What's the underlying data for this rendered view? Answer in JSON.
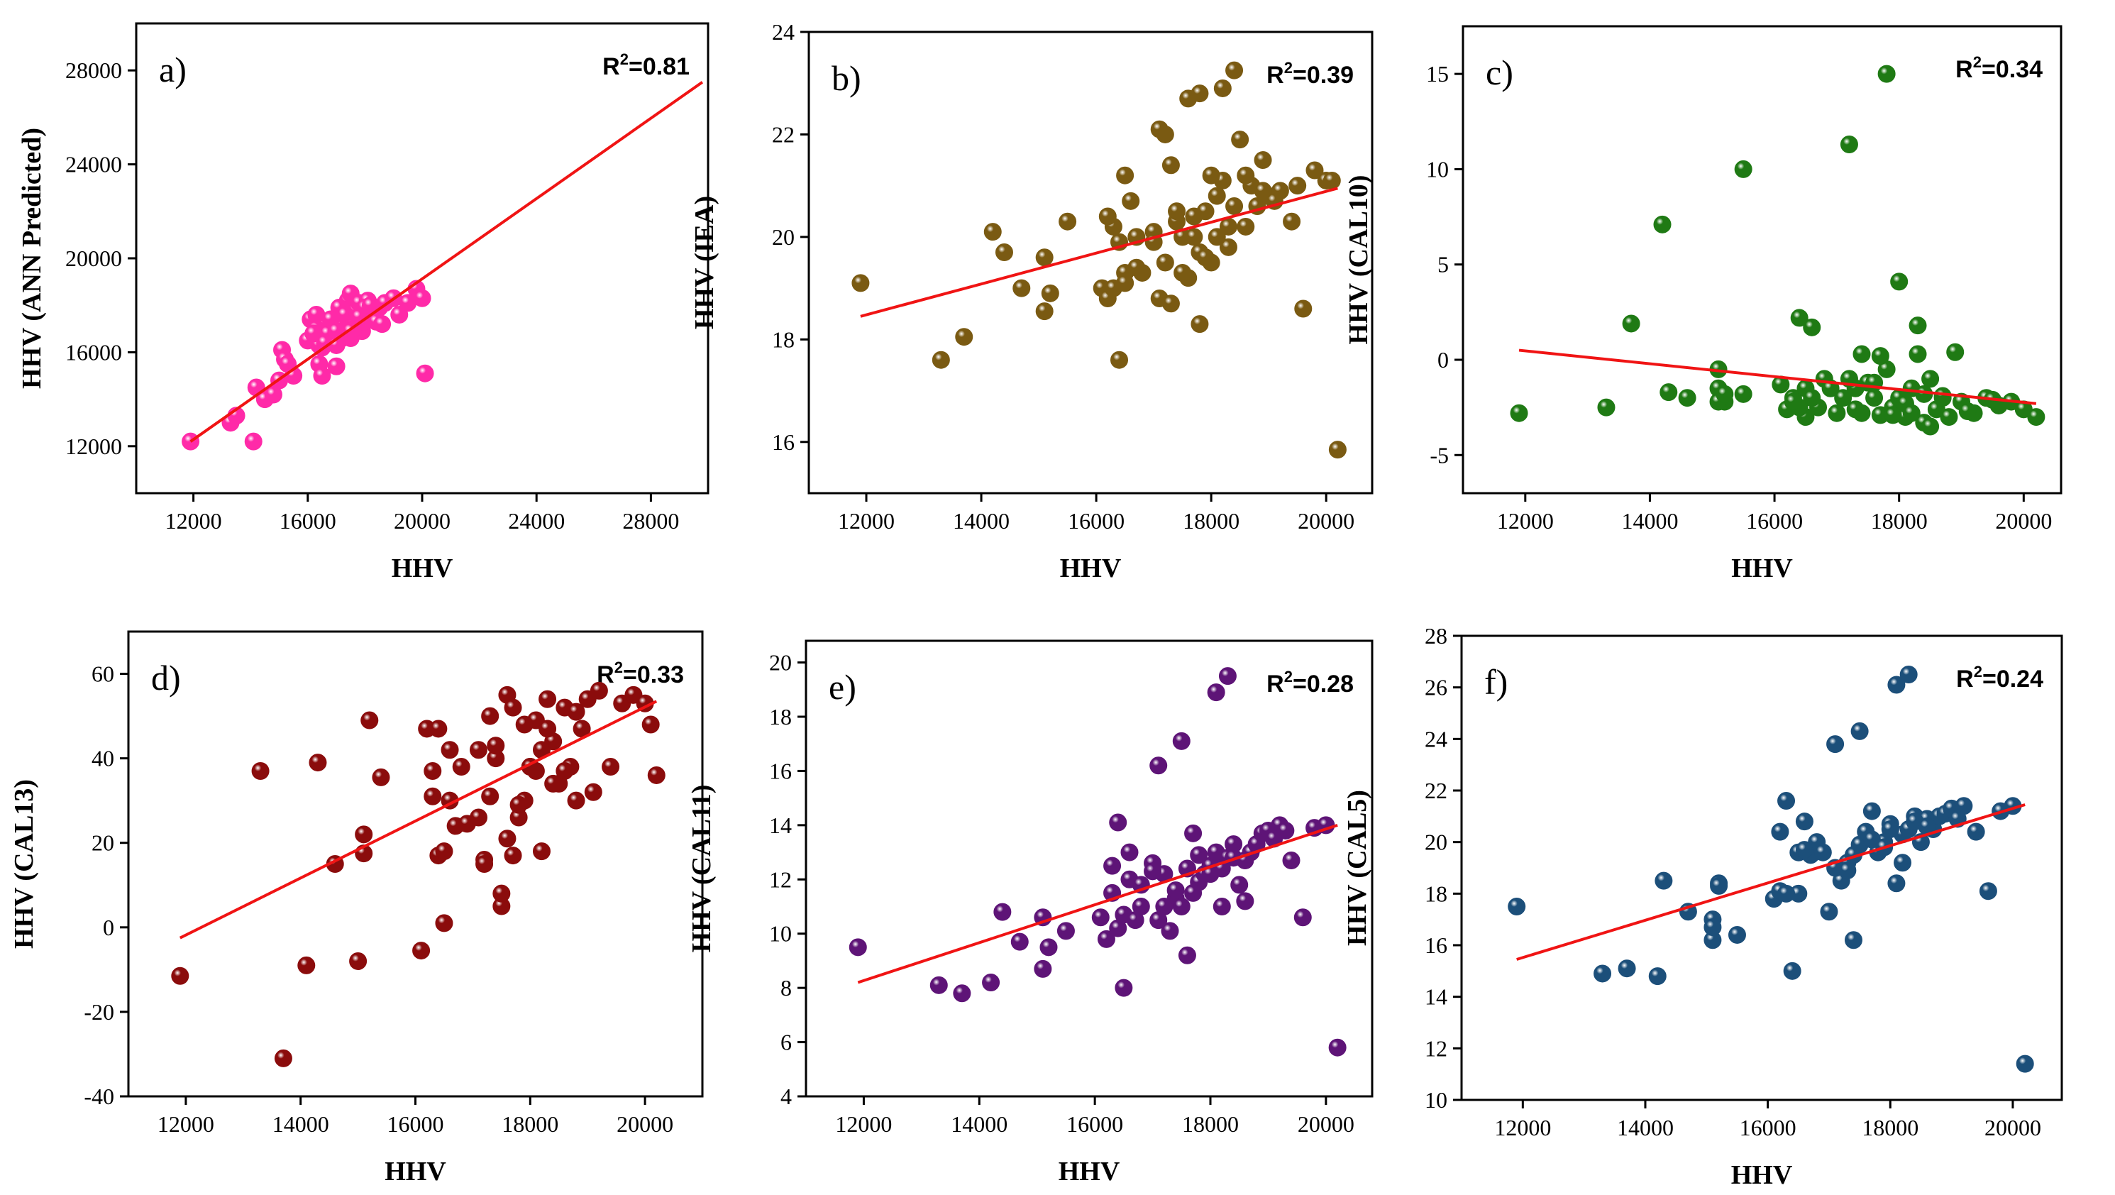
{
  "colors": {
    "fit_line": "#f01414",
    "a": "#ff2aa8",
    "b": "#7a5a12",
    "c": "#1f7a14",
    "d": "#8b0c0c",
    "e": "#5e1477",
    "f": "#1c4f7a"
  },
  "chart_data": [
    {
      "id": "a",
      "type": "scatter",
      "title": "a)",
      "r2_base": "R",
      "r2_sup": "2",
      "r2_value": "=0.81",
      "xlabel": "HHV",
      "ylabel": "HHV (ANN Predicted)",
      "xlim": [
        10000,
        30000
      ],
      "ylim": [
        10000,
        30000
      ],
      "xticks": [
        12000,
        16000,
        20000,
        24000,
        28000
      ],
      "yticks": [
        12000,
        16000,
        20000,
        24000,
        28000
      ],
      "fit": {
        "x": [
          11900,
          29800
        ],
        "y": [
          12200,
          27500
        ]
      },
      "x": [
        11900,
        13300,
        13500,
        14100,
        14200,
        14500,
        14800,
        15000,
        15100,
        15200,
        15300,
        15500,
        16000,
        16100,
        16200,
        16300,
        16400,
        16500,
        16500,
        16600,
        16800,
        16900,
        17000,
        17100,
        17200,
        17300,
        17400,
        17500,
        17600,
        17700,
        17800,
        17900,
        18000,
        18100,
        18300,
        18500,
        18700,
        19000,
        19200,
        19500,
        19800,
        20000,
        20100,
        16300,
        16700,
        17100,
        17500,
        17900,
        18300,
        16400,
        16800,
        17200,
        17600,
        18000,
        18400,
        16200,
        16600,
        17000,
        17400,
        17800,
        18200,
        18600,
        17000,
        17500
      ],
      "y": [
        12200,
        13000,
        13300,
        12200,
        14500,
        14000,
        14200,
        14800,
        16100,
        15700,
        15500,
        15000,
        16500,
        17400,
        16800,
        17600,
        15500,
        16200,
        15000,
        16600,
        16900,
        17200,
        15400,
        17900,
        17300,
        17600,
        18200,
        18500,
        17100,
        17800,
        18100,
        16900,
        17400,
        18200,
        17600,
        17900,
        18100,
        18300,
        17600,
        18100,
        18700,
        18300,
        15100,
        17000,
        16800,
        17100,
        16600,
        17200,
        17800,
        16300,
        17400,
        16600,
        17000,
        17900,
        17300,
        16800,
        16400,
        16900,
        16700,
        17500,
        18000,
        17200,
        16300,
        16900
      ]
    },
    {
      "id": "b",
      "type": "scatter",
      "title": "b)",
      "r2_base": "R",
      "r2_sup": "2",
      "r2_value": "=0.39",
      "xlabel": "HHV",
      "ylabel": "HHV (IEA)",
      "xlim": [
        11000,
        20800
      ],
      "ylim": [
        15,
        24
      ],
      "xticks": [
        12000,
        14000,
        16000,
        18000,
        20000
      ],
      "yticks": [
        16,
        18,
        20,
        22,
        24
      ],
      "fit": {
        "x": [
          11900,
          20200
        ],
        "y": [
          18.45,
          20.95
        ]
      },
      "x": [
        11900,
        13300,
        13700,
        14200,
        14400,
        14700,
        15100,
        15200,
        15500,
        15100,
        16100,
        16200,
        16300,
        16400,
        16500,
        16600,
        16700,
        16800,
        17000,
        17100,
        17200,
        17300,
        17400,
        17500,
        17600,
        17700,
        17800,
        17900,
        18000,
        18100,
        18200,
        18300,
        18400,
        18500,
        18600,
        18700,
        18800,
        18900,
        19000,
        19200,
        19400,
        19600,
        19800,
        20000,
        20200,
        16400,
        16500,
        17100,
        17300,
        17600,
        17800,
        18000,
        18200,
        18400,
        16200,
        16700,
        17000,
        17400,
        17900,
        18100,
        18600,
        19100,
        16500,
        17200,
        17500,
        17800,
        18300,
        18900,
        19500,
        20100,
        16300,
        17700
      ],
      "y": [
        19.1,
        17.6,
        18.05,
        20.1,
        19.7,
        19.0,
        18.55,
        18.9,
        20.3,
        19.6,
        19.0,
        18.8,
        20.2,
        17.6,
        19.3,
        20.7,
        20.0,
        19.3,
        20.1,
        18.8,
        22.0,
        21.4,
        20.3,
        20.0,
        19.2,
        20.4,
        19.7,
        20.5,
        19.5,
        20.8,
        21.1,
        19.8,
        20.6,
        21.9,
        20.2,
        21.0,
        20.6,
        21.5,
        20.8,
        20.9,
        20.3,
        18.6,
        21.3,
        21.1,
        15.85,
        19.9,
        19.1,
        22.1,
        18.7,
        22.7,
        22.8,
        21.2,
        22.9,
        23.25,
        20.4,
        19.4,
        19.9,
        20.5,
        19.6,
        20.0,
        21.2,
        20.7,
        21.2,
        19.5,
        19.3,
        18.3,
        20.2,
        20.9,
        21.0,
        21.1,
        19.0,
        20.0
      ]
    },
    {
      "id": "c",
      "type": "scatter",
      "title": "c)",
      "r2_base": "R",
      "r2_sup": "2",
      "r2_value": "=0.34",
      "xlabel": "HHV",
      "ylabel": "HHV (CAL10)",
      "xlim": [
        11000,
        20600
      ],
      "ylim": [
        -7,
        17.5
      ],
      "xticks": [
        12000,
        14000,
        16000,
        18000,
        20000
      ],
      "yticks": [
        -5,
        0,
        5,
        10,
        15
      ],
      "fit": {
        "x": [
          11900,
          20200
        ],
        "y": [
          0.5,
          -2.3
        ]
      },
      "x": [
        11900,
        13300,
        13700,
        14200,
        14300,
        14600,
        15100,
        15100,
        15200,
        15500,
        16100,
        16200,
        16300,
        16400,
        16500,
        16500,
        16600,
        16700,
        16800,
        17000,
        17100,
        17200,
        17300,
        17400,
        17500,
        17600,
        17700,
        17800,
        17900,
        18000,
        18100,
        18200,
        18300,
        18400,
        18500,
        18600,
        18700,
        18800,
        18900,
        19000,
        19200,
        19400,
        19600,
        19800,
        20000,
        20200,
        17200,
        17800,
        18000,
        15500,
        16400,
        16600,
        18300,
        18400,
        17400,
        17700,
        18500,
        16300,
        17900,
        18100,
        16900,
        17300,
        17600,
        18200,
        18700,
        19100,
        19500,
        15100,
        15200
      ],
      "y": [
        -2.8,
        -2.5,
        1.9,
        7.1,
        -1.7,
        -2.0,
        -0.5,
        -1.5,
        -2.2,
        10.0,
        -1.3,
        -2.6,
        -2.0,
        2.2,
        -3.0,
        -1.5,
        1.7,
        -2.5,
        -1.0,
        -2.8,
        -2.0,
        11.3,
        -1.5,
        -2.8,
        -1.2,
        -2.0,
        -2.9,
        15.0,
        -2.5,
        4.1,
        -3.0,
        -1.5,
        1.8,
        -3.3,
        -1.0,
        -2.6,
        -2.0,
        -3.0,
        0.4,
        -2.2,
        -2.8,
        -2.0,
        -2.4,
        -2.2,
        -2.6,
        -3.0,
        -1.0,
        -0.5,
        -2.0,
        -1.8,
        -2.5,
        -2.0,
        0.3,
        -1.8,
        0.3,
        0.2,
        -3.5,
        -2.2,
        -2.9,
        -2.3,
        -1.5,
        -2.6,
        -1.2,
        -2.8,
        -1.9,
        -2.7,
        -2.1,
        -2.2,
        -1.8
      ]
    },
    {
      "id": "d",
      "type": "scatter",
      "title": "d)",
      "r2_base": "R",
      "r2_sup": "2",
      "r2_value": "=0.33",
      "xlabel": "HHV",
      "ylabel": "HHV (CAL13)",
      "xlim": [
        11000,
        21000
      ],
      "ylim": [
        -40,
        70
      ],
      "xticks": [
        12000,
        14000,
        16000,
        18000,
        20000
      ],
      "yticks": [
        -40,
        -20,
        0,
        20,
        40,
        60
      ],
      "fit": {
        "x": [
          11900,
          20200
        ],
        "y": [
          -2.5,
          53.5
        ]
      },
      "x": [
        11900,
        13300,
        13700,
        14100,
        14300,
        14600,
        15000,
        15100,
        15100,
        15200,
        15400,
        16100,
        16200,
        16300,
        16400,
        16500,
        16600,
        16700,
        16800,
        16900,
        17100,
        17200,
        17300,
        17400,
        17500,
        17600,
        17700,
        17800,
        17900,
        18000,
        18100,
        18200,
        18300,
        18400,
        18500,
        18600,
        18700,
        18800,
        18900,
        19000,
        19200,
        19400,
        19600,
        19800,
        20000,
        20100,
        20200,
        16400,
        16500,
        17400,
        17500,
        17600,
        17700,
        17800,
        18100,
        18300,
        16300,
        17200,
        17900,
        18400,
        18800,
        19100,
        16600,
        17300,
        18000,
        18200,
        18600,
        17100
      ],
      "y": [
        -11.5,
        37,
        -31,
        -9,
        39,
        15,
        -8,
        22,
        17.5,
        49,
        35.5,
        -5.5,
        47,
        31,
        47,
        1,
        42,
        24,
        38,
        24.5,
        42,
        16,
        31,
        40,
        5,
        55,
        17,
        26,
        30,
        38,
        49,
        18,
        54,
        44,
        34,
        52,
        38,
        51,
        47,
        54,
        56,
        38,
        53,
        55,
        53,
        48,
        36,
        17,
        18,
        43,
        8,
        21,
        52,
        29,
        37,
        47,
        37,
        15,
        48,
        34,
        30,
        32,
        30,
        50,
        38,
        42,
        37,
        26
      ]
    },
    {
      "id": "e",
      "type": "scatter",
      "title": "e)",
      "r2_base": "R",
      "r2_sup": "2",
      "r2_value": "=0.28",
      "xlabel": "HHV",
      "ylabel": "HHV (CAL11)",
      "xlim": [
        11000,
        20800
      ],
      "ylim": [
        4,
        20.8
      ],
      "xticks": [
        12000,
        14000,
        16000,
        18000,
        20000
      ],
      "yticks": [
        4,
        6,
        8,
        10,
        12,
        14,
        16,
        18,
        20
      ],
      "fit": {
        "x": [
          11900,
          20200
        ],
        "y": [
          8.2,
          14.0
        ]
      },
      "x": [
        11900,
        13300,
        13700,
        14200,
        14400,
        14700,
        15100,
        15100,
        15200,
        15500,
        16100,
        16200,
        16300,
        16400,
        16500,
        16500,
        16600,
        16700,
        16800,
        17000,
        17100,
        17200,
        17300,
        17400,
        17500,
        17600,
        17700,
        17800,
        17900,
        18000,
        18100,
        18200,
        18300,
        18400,
        18500,
        18600,
        18700,
        18800,
        18900,
        19000,
        19200,
        19400,
        19600,
        19800,
        20000,
        20200,
        17100,
        17500,
        18100,
        18300,
        16400,
        17200,
        17700,
        18000,
        18400,
        16600,
        17000,
        17400,
        17800,
        18200,
        18600,
        19100,
        16300,
        16800,
        17600,
        19300
      ],
      "y": [
        9.5,
        8.1,
        7.8,
        8.2,
        10.8,
        9.7,
        8.7,
        10.6,
        9.5,
        10.1,
        10.6,
        9.8,
        11.5,
        10.2,
        8.0,
        10.7,
        13.0,
        10.5,
        11.0,
        12.6,
        10.5,
        12.2,
        10.1,
        11.3,
        11.0,
        9.2,
        13.7,
        11.9,
        12.2,
        12.5,
        13.0,
        11.0,
        12.8,
        13.3,
        11.8,
        11.2,
        13.0,
        13.3,
        13.7,
        13.8,
        14.0,
        12.7,
        10.6,
        13.9,
        14.0,
        5.8,
        16.2,
        17.1,
        18.9,
        19.5,
        14.1,
        11.0,
        11.5,
        12.2,
        12.8,
        12.0,
        12.3,
        11.6,
        12.9,
        12.4,
        12.7,
        13.5,
        12.5,
        11.8,
        12.4,
        13.8
      ]
    },
    {
      "id": "f",
      "type": "scatter",
      "title": "f)",
      "r2_base": "R",
      "r2_sup": "2",
      "r2_value": "=0.24",
      "xlabel": "HHV",
      "ylabel": "HHV (CAL5)",
      "xlim": [
        11000,
        20800
      ],
      "ylim": [
        10,
        28
      ],
      "xticks": [
        12000,
        14000,
        16000,
        18000,
        20000
      ],
      "yticks": [
        10,
        12,
        14,
        16,
        18,
        20,
        22,
        24,
        26,
        28
      ],
      "fit": {
        "x": [
          11900,
          20200
        ],
        "y": [
          15.45,
          21.45
        ]
      },
      "x": [
        11900,
        13300,
        13700,
        14200,
        14300,
        14700,
        15100,
        15100,
        15200,
        15500,
        16100,
        16200,
        16300,
        16400,
        16500,
        16500,
        16600,
        16700,
        16800,
        17000,
        17100,
        17200,
        17300,
        17400,
        17500,
        17600,
        17700,
        17800,
        17900,
        18000,
        18100,
        18200,
        18300,
        18400,
        18500,
        18600,
        18700,
        18800,
        18900,
        19000,
        19200,
        19400,
        19600,
        19800,
        20000,
        20200,
        17100,
        17500,
        18100,
        18300,
        16200,
        16900,
        17300,
        17700,
        18000,
        18400,
        16300,
        16600,
        17400,
        17900,
        18200,
        18600,
        19100,
        15100,
        15200
      ],
      "y": [
        17.5,
        14.9,
        15.1,
        14.8,
        18.5,
        17.3,
        16.2,
        17.0,
        18.4,
        16.4,
        17.8,
        20.4,
        21.6,
        15.0,
        18.0,
        19.6,
        20.8,
        19.5,
        20.0,
        17.3,
        23.8,
        18.5,
        19.2,
        16.2,
        19.9,
        20.4,
        21.2,
        19.6,
        20.0,
        20.7,
        18.4,
        20.3,
        20.5,
        21.0,
        20.0,
        20.9,
        20.5,
        21.0,
        21.1,
        21.3,
        21.4,
        20.4,
        18.1,
        21.2,
        21.4,
        11.4,
        19.0,
        24.3,
        26.1,
        26.5,
        18.1,
        19.6,
        18.9,
        20.1,
        20.5,
        20.8,
        18.0,
        19.7,
        19.5,
        19.8,
        19.2,
        20.6,
        20.9,
        16.7,
        18.3
      ]
    }
  ]
}
